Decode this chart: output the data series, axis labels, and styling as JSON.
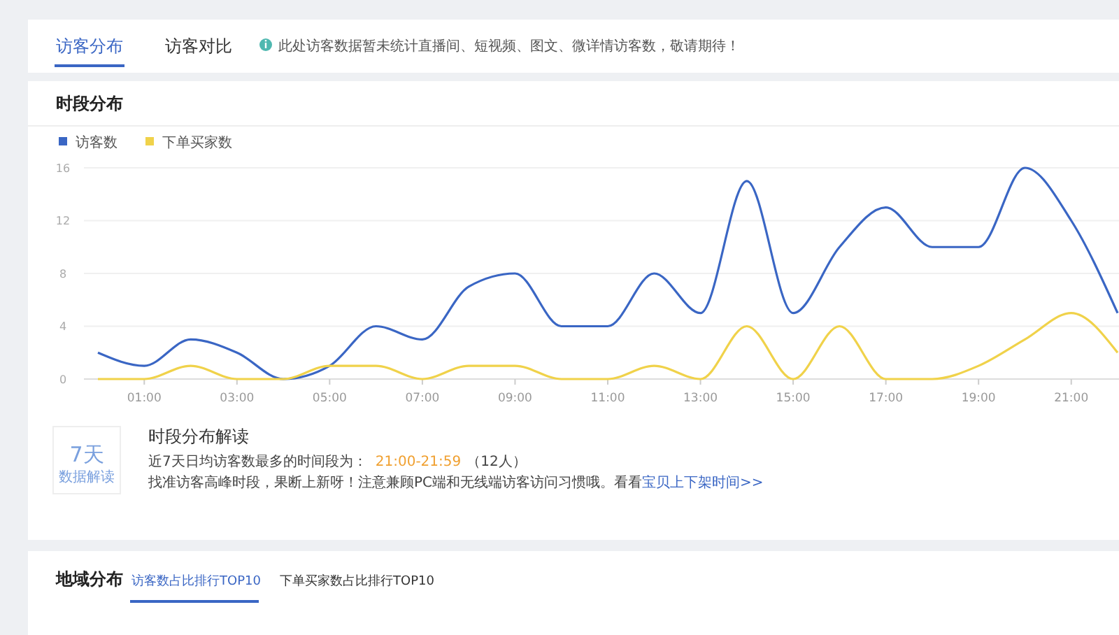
{
  "chart_data": {
    "type": "line",
    "title": "时段分布",
    "categories": [
      null,
      "01:00",
      null,
      "03:00",
      null,
      "05:00",
      null,
      "07:00",
      null,
      "09:00",
      null,
      "11:00",
      null,
      "13:00",
      null,
      "15:00",
      null,
      "17:00",
      null,
      "19:00",
      null,
      "21:00",
      null
    ],
    "series": [
      {
        "name": "访客数",
        "color": "#3a66c4",
        "values": [
          2,
          1,
          3,
          2,
          0,
          1,
          4,
          3,
          7,
          8,
          4,
          4,
          8,
          5,
          15,
          5,
          10,
          13,
          10,
          10,
          16,
          12,
          5
        ]
      },
      {
        "name": "下单买家数",
        "color": "#f0d24a",
        "values": [
          0,
          0,
          1,
          0,
          0,
          1,
          1,
          0,
          1,
          1,
          0,
          0,
          1,
          0,
          4,
          0,
          4,
          0,
          0,
          1,
          3,
          5,
          2
        ]
      }
    ],
    "ylim": [
      0,
      16
    ],
    "yticks": [
      0,
      4,
      8,
      12,
      16
    ],
    "grid": "y",
    "legend": "top left",
    "marker": "none",
    "line_style": "solid",
    "annotations": [
      "访客分布",
      "访客对比",
      "此处访客数据暂未统计直播间、短视频、图文、微详情访客数，敬请期待！",
      "时段分布解读",
      "7天",
      "数据解读",
      "近7天日均访客数最多的时间段为：",
      "21:00-21:59",
      "（12人）",
      "找准访客高峰时段，果断上新呀！注意兼顾PC端和无线端访客访问习惯哦。看看",
      "宝贝上下架时间>>",
      "地域分布",
      "访客数占比排行TOP10",
      "下单买家数占比排行TOP10"
    ]
  }
}
